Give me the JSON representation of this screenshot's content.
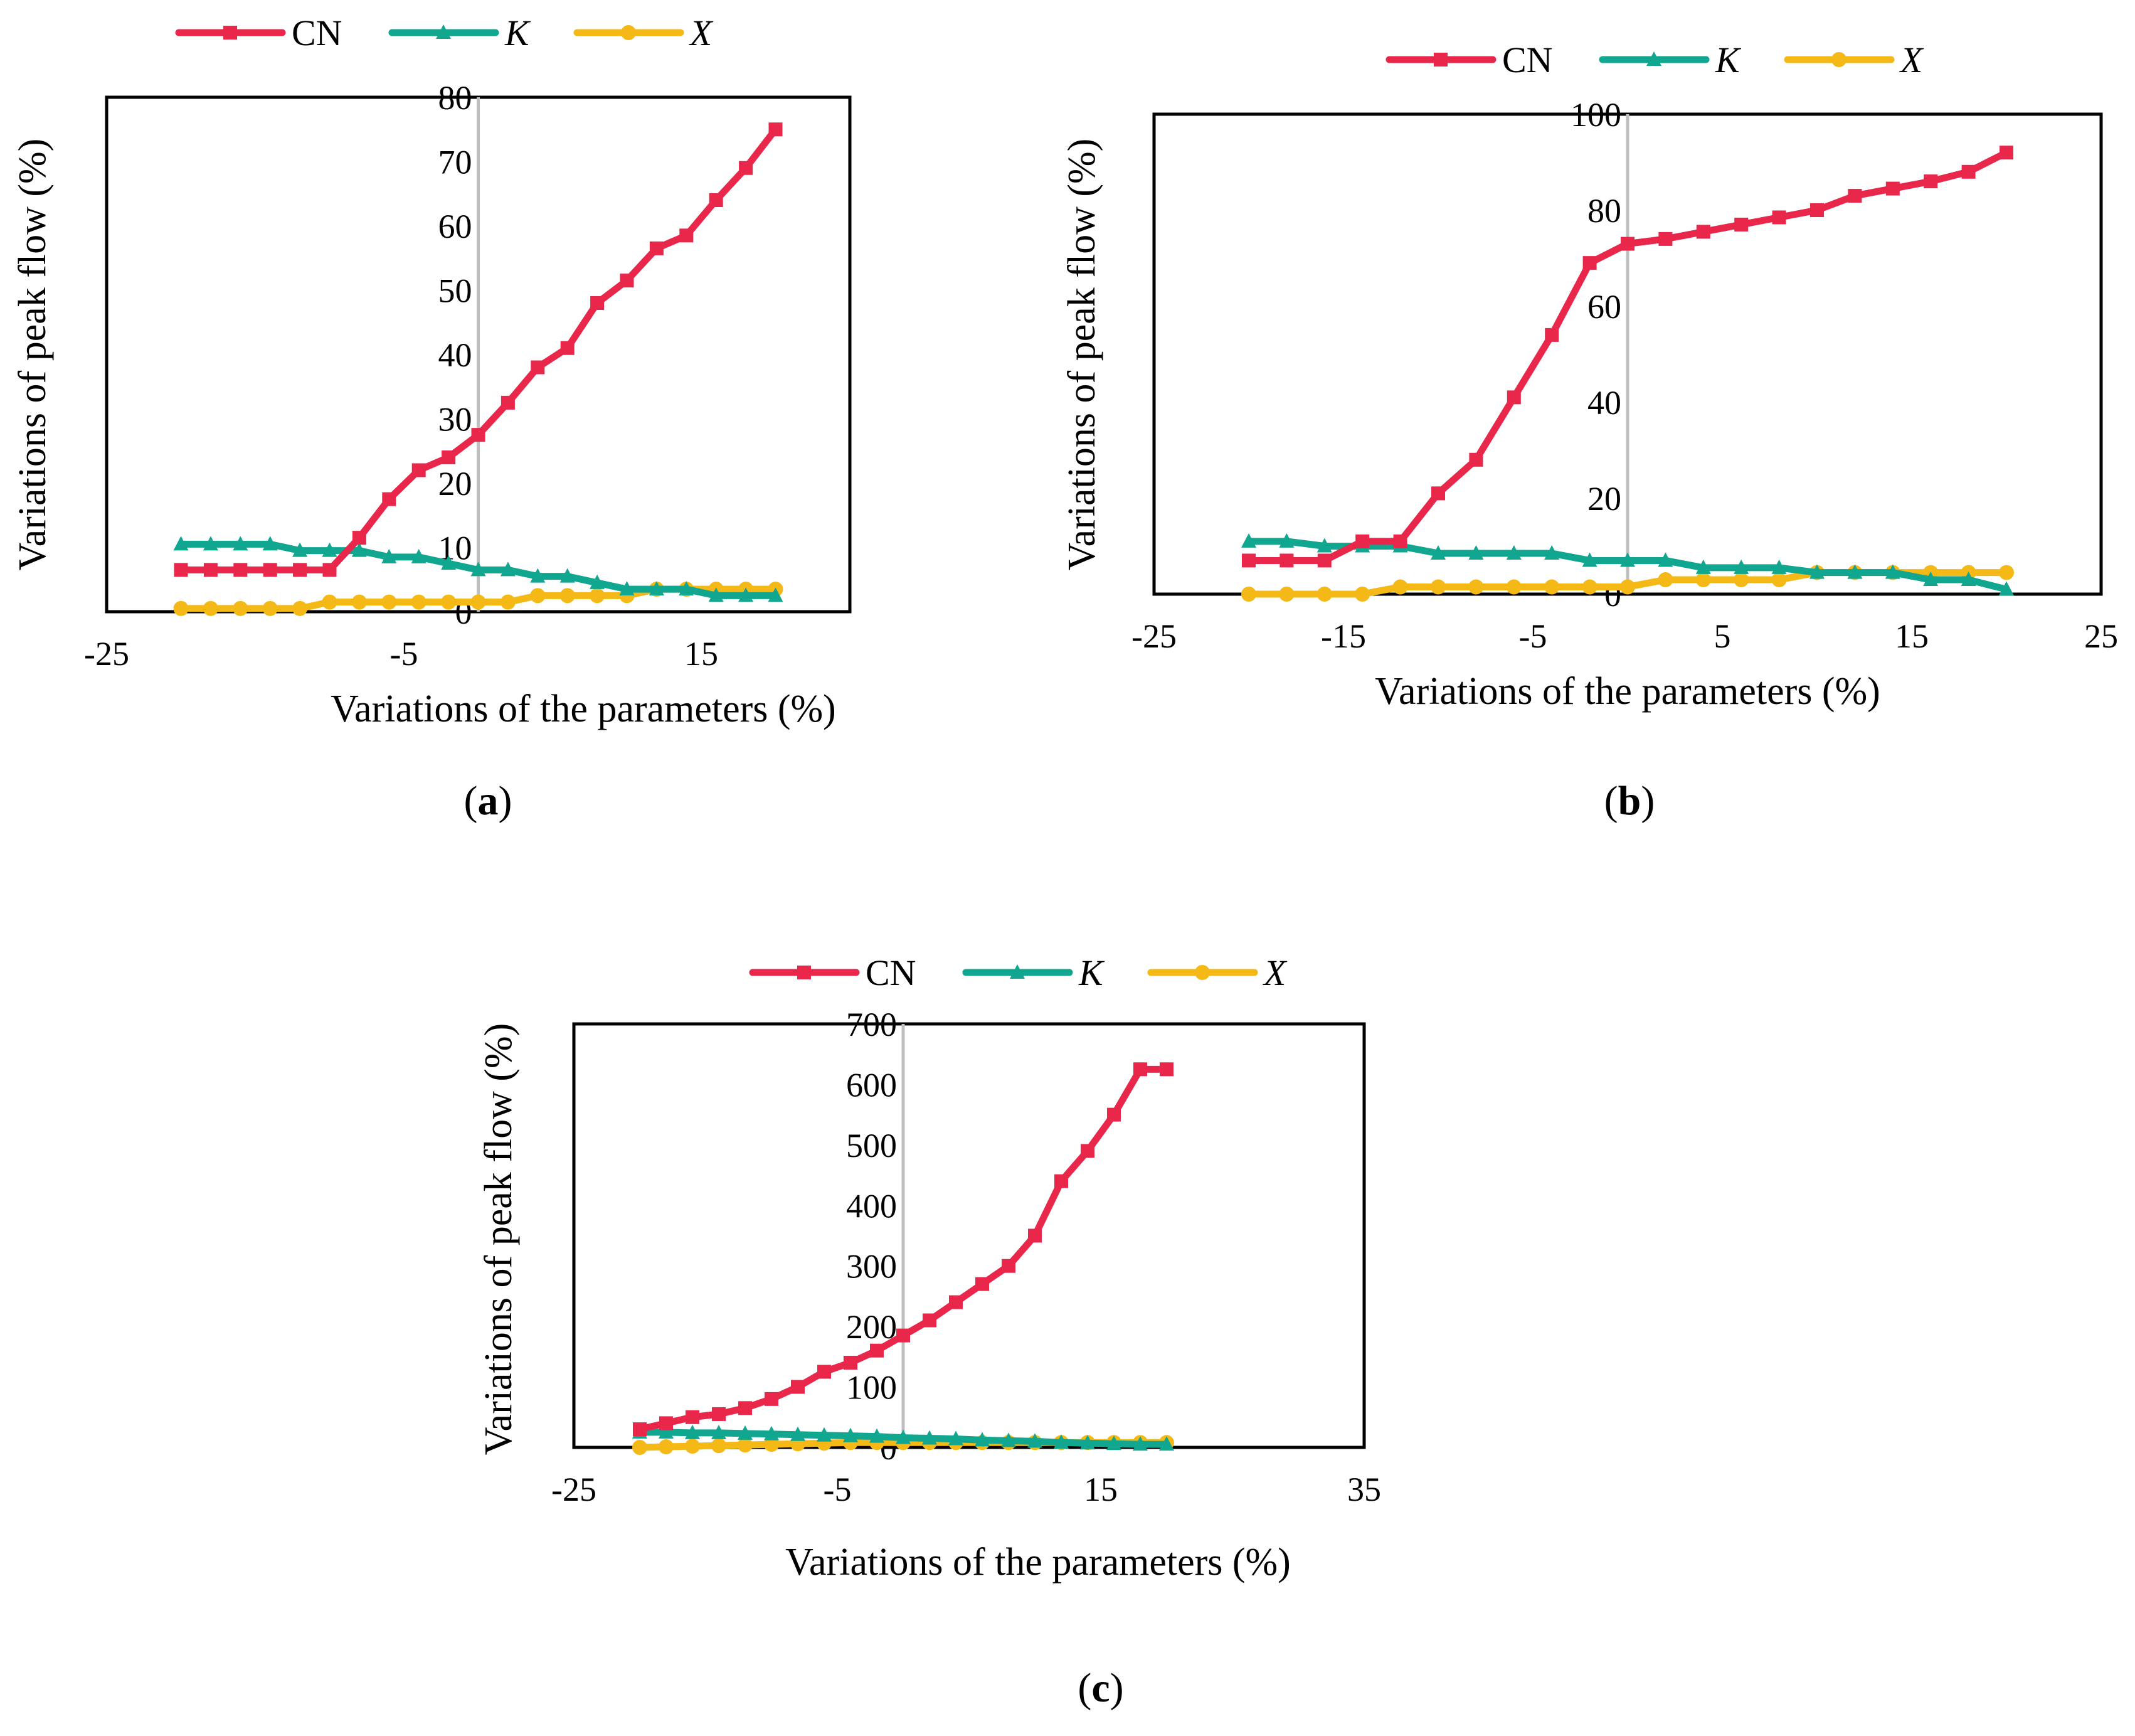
{
  "colors": {
    "cn": "#E8274B",
    "k": "#10A690",
    "x": "#F4B916",
    "zero_line": "#BFBFBF",
    "frame": "#000000"
  },
  "chart_data": [
    {
      "panel": "a",
      "panel_label": "a",
      "type": "line",
      "title": "",
      "xlabel": "Variations of the parameters (%)",
      "ylabel": "Variations of peak flow (%)",
      "xlim": [
        -25,
        25
      ],
      "ylim": [
        0,
        80
      ],
      "xticks": [
        -25,
        -5,
        15
      ],
      "xtick_labels": [
        "-25",
        "-5",
        "15"
      ],
      "yticks": [
        0,
        10,
        20,
        30,
        40,
        50,
        60,
        70,
        80
      ],
      "ytick_labels": [
        "0",
        "10",
        "20",
        "30",
        "40",
        "50",
        "60",
        "70",
        "80"
      ],
      "x": [
        -20,
        -18,
        -16,
        -14,
        -12,
        -10,
        -8,
        -6,
        -4,
        -2,
        0,
        2,
        4,
        6,
        8,
        10,
        12,
        14,
        16,
        18,
        20
      ],
      "legend": [
        "CN",
        "K",
        "X"
      ],
      "series": [
        {
          "name": "CN",
          "marker": "square",
          "values": [
            6.5,
            6.5,
            6.5,
            6.5,
            6.5,
            6.5,
            11.5,
            17.5,
            22,
            24,
            27.5,
            32.5,
            38,
            41,
            48,
            51.5,
            56.5,
            58.5,
            64,
            69,
            75
          ]
        },
        {
          "name": "K",
          "marker": "triangle",
          "values": [
            10.5,
            10.5,
            10.5,
            10.5,
            9.5,
            9.5,
            9.5,
            8.5,
            8.5,
            7.5,
            6.5,
            6.5,
            5.5,
            5.5,
            4.5,
            3.5,
            3.5,
            3.5,
            2.5,
            2.5,
            2.5
          ]
        },
        {
          "name": "X",
          "marker": "circle",
          "values": [
            0.5,
            0.5,
            0.5,
            0.5,
            0.5,
            1.5,
            1.5,
            1.5,
            1.5,
            1.5,
            1.5,
            1.5,
            2.5,
            2.5,
            2.5,
            2.5,
            3.5,
            3.5,
            3.5,
            3.5,
            3.5
          ]
        }
      ]
    },
    {
      "panel": "b",
      "panel_label": "b",
      "type": "line",
      "title": "",
      "xlabel": "Variations of the parameters (%)",
      "ylabel": "Variations of peak flow (%)",
      "xlim": [
        -25,
        25
      ],
      "ylim": [
        0,
        100
      ],
      "xticks": [
        -25,
        -15,
        -5,
        5,
        15,
        25
      ],
      "xtick_labels": [
        "-25",
        "-15",
        "-5",
        "5",
        "15",
        "25"
      ],
      "yticks": [
        0,
        20,
        40,
        60,
        80,
        100
      ],
      "ytick_labels": [
        "0",
        "20",
        "40",
        "60",
        "80",
        "100"
      ],
      "x": [
        -20,
        -18,
        -16,
        -14,
        -12,
        -10,
        -8,
        -6,
        -4,
        -2,
        0,
        2,
        4,
        6,
        8,
        10,
        12,
        14,
        16,
        18,
        20
      ],
      "legend": [
        "CN",
        "K",
        "X"
      ],
      "series": [
        {
          "name": "CN",
          "marker": "square",
          "values": [
            7,
            7,
            7,
            11,
            11,
            21,
            28,
            41,
            54,
            69,
            73,
            74,
            75.5,
            77,
            78.5,
            80,
            83,
            84.5,
            86,
            88,
            92
          ]
        },
        {
          "name": "K",
          "marker": "triangle",
          "values": [
            11,
            11,
            10,
            10,
            10,
            8.5,
            8.5,
            8.5,
            8.5,
            7,
            7,
            7,
            5.5,
            5.5,
            5.5,
            4.5,
            4.5,
            4.5,
            3,
            3,
            1
          ]
        },
        {
          "name": "X",
          "marker": "circle",
          "values": [
            0,
            0,
            0,
            0,
            1.5,
            1.5,
            1.5,
            1.5,
            1.5,
            1.5,
            1.5,
            3,
            3,
            3,
            3,
            4.5,
            4.5,
            4.5,
            4.5,
            4.5,
            4.5
          ]
        }
      ]
    },
    {
      "panel": "c",
      "panel_label": "c",
      "type": "line",
      "title": "",
      "xlabel": "Variations of the parameters (%)",
      "ylabel": "Variations of peak flow (%)",
      "xlim": [
        -25,
        35
      ],
      "ylim": [
        0,
        700
      ],
      "xticks": [
        -25,
        -5,
        15,
        35
      ],
      "xtick_labels": [
        "-25",
        "-5",
        "15",
        "35"
      ],
      "yticks": [
        0,
        100,
        200,
        300,
        400,
        500,
        600,
        700
      ],
      "ytick_labels": [
        "0",
        "100",
        "200",
        "300",
        "400",
        "500",
        "600",
        "700"
      ],
      "x": [
        -20,
        -18,
        -16,
        -14,
        -12,
        -10,
        -8,
        -6,
        -4,
        -2,
        0,
        2,
        4,
        6,
        8,
        10,
        12,
        14,
        16,
        18,
        20
      ],
      "legend": [
        "CN",
        "K",
        "X"
      ],
      "series": [
        {
          "name": "CN",
          "marker": "square",
          "values": [
            30,
            40,
            50,
            55,
            65,
            80,
            100,
            125,
            140,
            160,
            185,
            210,
            240,
            270,
            300,
            350,
            440,
            490,
            550,
            625,
            625
          ]
        },
        {
          "name": "K",
          "marker": "triangle",
          "values": [
            25,
            25,
            24,
            24,
            23,
            22,
            21,
            20,
            19,
            18,
            16,
            15,
            14,
            12,
            11,
            10,
            8,
            7,
            6,
            5,
            5
          ]
        },
        {
          "name": "X",
          "marker": "circle",
          "values": [
            0,
            1,
            2,
            3,
            4,
            5,
            6,
            7,
            8,
            8,
            8,
            8,
            8,
            8,
            8,
            8,
            8,
            8,
            8,
            8,
            8
          ]
        }
      ]
    }
  ]
}
